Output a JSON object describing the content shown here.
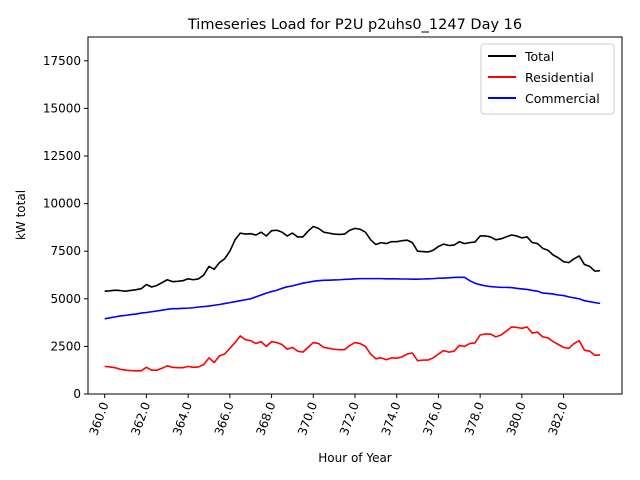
{
  "chart_data": {
    "type": "line",
    "title": "Timeseries Load for P2U p2uhs0_1247  Day 16",
    "xlabel": "Hour of Year",
    "ylabel": "kW total",
    "xlim": [
      359.2,
      384.8
    ],
    "ylim": [
      0,
      18750
    ],
    "xticks": [
      360,
      362,
      364,
      366,
      368,
      370,
      372,
      374,
      376,
      378,
      380,
      382
    ],
    "xtick_labels": [
      "360.0",
      "362.0",
      "364.0",
      "366.0",
      "368.0",
      "370.0",
      "372.0",
      "374.0",
      "376.0",
      "378.0",
      "380.0",
      "382.0"
    ],
    "yticks": [
      0,
      2500,
      5000,
      7500,
      10000,
      12500,
      15000,
      17500
    ],
    "ytick_labels": [
      "0",
      "2500",
      "5000",
      "7500",
      "10000",
      "12500",
      "15000",
      "17500"
    ],
    "legend_position": "top-right",
    "x_start": 360,
    "x_step": 0.25,
    "series": [
      {
        "name": "Total",
        "color": "#000000",
        "values": [
          5400,
          5420,
          5450,
          5430,
          5400,
          5440,
          5480,
          5530,
          5750,
          5620,
          5700,
          5850,
          6000,
          5900,
          5920,
          5950,
          6050,
          6000,
          6050,
          6250,
          6700,
          6550,
          6900,
          7100,
          7500,
          8100,
          8450,
          8400,
          8420,
          8350,
          8500,
          8300,
          8580,
          8600,
          8500,
          8300,
          8450,
          8250,
          8250,
          8550,
          8800,
          8700,
          8500,
          8450,
          8400,
          8380,
          8400,
          8600,
          8700,
          8650,
          8500,
          8100,
          7850,
          7950,
          7900,
          8000,
          8000,
          8050,
          8080,
          7950,
          7500,
          7480,
          7460,
          7550,
          7750,
          7870,
          7800,
          7820,
          8000,
          7900,
          7950,
          7980,
          8300,
          8300,
          8250,
          8100,
          8150,
          8250,
          8350,
          8300,
          8200,
          8250,
          7950,
          7900,
          7650,
          7550,
          7300,
          7150,
          6950,
          6900,
          7100,
          7250,
          6800,
          6700,
          6450,
          6480
        ]
      },
      {
        "name": "Residential",
        "color": "#ff0000",
        "values": [
          1450,
          1420,
          1380,
          1300,
          1250,
          1230,
          1220,
          1220,
          1400,
          1250,
          1250,
          1350,
          1480,
          1400,
          1380,
          1380,
          1450,
          1400,
          1420,
          1550,
          1900,
          1650,
          2000,
          2100,
          2400,
          2700,
          3050,
          2850,
          2800,
          2650,
          2750,
          2500,
          2750,
          2700,
          2600,
          2350,
          2450,
          2250,
          2200,
          2450,
          2700,
          2650,
          2450,
          2400,
          2350,
          2330,
          2330,
          2550,
          2700,
          2650,
          2500,
          2100,
          1850,
          1900,
          1800,
          1900,
          1880,
          1950,
          2100,
          2150,
          1750,
          1780,
          1780,
          1900,
          2100,
          2280,
          2200,
          2250,
          2550,
          2500,
          2650,
          2680,
          3100,
          3150,
          3150,
          3000,
          3100,
          3300,
          3520,
          3500,
          3450,
          3520,
          3200,
          3250,
          3000,
          2950,
          2750,
          2600,
          2450,
          2400,
          2650,
          2800,
          2300,
          2250,
          2030,
          2050
        ]
      },
      {
        "name": "Commercial",
        "color": "#0000ff",
        "values": [
          3950,
          4000,
          4050,
          4100,
          4130,
          4170,
          4200,
          4250,
          4280,
          4320,
          4360,
          4400,
          4450,
          4480,
          4480,
          4500,
          4510,
          4530,
          4570,
          4590,
          4620,
          4660,
          4700,
          4750,
          4800,
          4850,
          4900,
          4950,
          5000,
          5100,
          5200,
          5300,
          5380,
          5450,
          5550,
          5630,
          5680,
          5750,
          5820,
          5870,
          5920,
          5950,
          5970,
          5980,
          5990,
          6000,
          6020,
          6030,
          6050,
          6060,
          6060,
          6060,
          6060,
          6060,
          6050,
          6050,
          6050,
          6040,
          6040,
          6030,
          6030,
          6040,
          6050,
          6060,
          6080,
          6090,
          6100,
          6120,
          6130,
          6130,
          5950,
          5820,
          5740,
          5680,
          5640,
          5620,
          5600,
          5600,
          5590,
          5550,
          5520,
          5490,
          5440,
          5400,
          5300,
          5280,
          5250,
          5200,
          5170,
          5100,
          5050,
          5000,
          4900,
          4850,
          4800,
          4760
        ]
      }
    ]
  }
}
